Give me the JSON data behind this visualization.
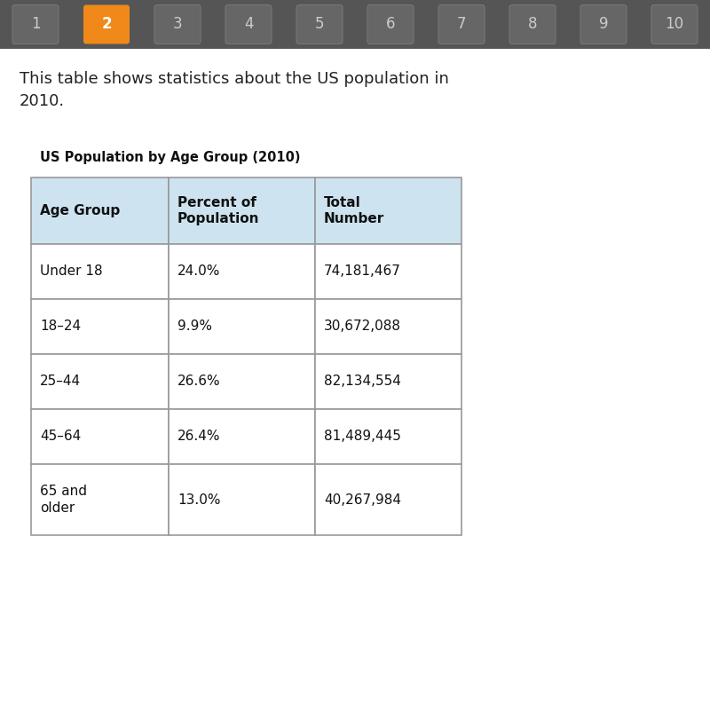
{
  "title": "US Population by Age Group (2010)",
  "intro_text": "This table shows statistics about the US population in\n2010.",
  "header": [
    "Age Group",
    "Percent of\nPopulation",
    "Total\nNumber"
  ],
  "rows": [
    [
      "Under 18",
      "24.0%",
      "74,181,467"
    ],
    [
      "18–24",
      "9.9%",
      "30,672,088"
    ],
    [
      "25–44",
      "26.6%",
      "82,134,554"
    ],
    [
      "45–64",
      "26.4%",
      "81,489,445"
    ],
    [
      "65 and\nolder",
      "13.0%",
      "40,267,984"
    ]
  ],
  "nav_numbers": [
    "1",
    "2",
    "3",
    "4",
    "5",
    "6",
    "7",
    "8",
    "9",
    "10"
  ],
  "nav_bg": "#555555",
  "nav_active_index": 1,
  "nav_active_color": "#F0891A",
  "nav_text_color": "#cccccc",
  "nav_active_text_color": "#ffffff",
  "page_bg": "#ffffff",
  "header_cell_bg": "#cde3f0",
  "body_cell_bg": "#ffffff",
  "table_border_color": "#999999",
  "title_fontsize": 10.5,
  "intro_fontsize": 13,
  "header_fontsize": 11,
  "cell_fontsize": 11,
  "nav_fontsize": 12
}
